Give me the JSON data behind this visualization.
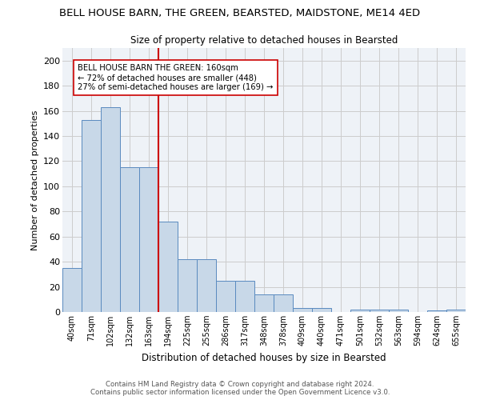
{
  "title": "BELL HOUSE BARN, THE GREEN, BEARSTED, MAIDSTONE, ME14 4ED",
  "subtitle": "Size of property relative to detached houses in Bearsted",
  "xlabel": "Distribution of detached houses by size in Bearsted",
  "ylabel": "Number of detached properties",
  "bar_values": [
    35,
    153,
    163,
    115,
    115,
    72,
    42,
    42,
    25,
    25,
    14,
    14,
    3,
    3,
    0,
    2,
    2,
    2,
    0,
    1,
    2
  ],
  "bin_labels": [
    "40sqm",
    "71sqm",
    "102sqm",
    "132sqm",
    "163sqm",
    "194sqm",
    "225sqm",
    "255sqm",
    "286sqm",
    "317sqm",
    "348sqm",
    "378sqm",
    "409sqm",
    "440sqm",
    "471sqm",
    "501sqm",
    "532sqm",
    "563sqm",
    "594sqm",
    "624sqm",
    "655sqm"
  ],
  "bar_color": "#c8d8e8",
  "bar_edge_color": "#5a8abf",
  "vline_x": 4.5,
  "vline_color": "#cc0000",
  "annotation_text": "BELL HOUSE BARN THE GREEN: 160sqm\n← 72% of detached houses are smaller (448)\n27% of semi-detached houses are larger (169) →",
  "annotation_box_color": "white",
  "annotation_box_edge_color": "#cc0000",
  "ylim": [
    0,
    210
  ],
  "yticks": [
    0,
    20,
    40,
    60,
    80,
    100,
    120,
    140,
    160,
    180,
    200
  ],
  "grid_color": "#cccccc",
  "bg_color": "#eef2f7",
  "footer_line1": "Contains HM Land Registry data © Crown copyright and database right 2024.",
  "footer_line2": "Contains public sector information licensed under the Open Government Licence v3.0."
}
